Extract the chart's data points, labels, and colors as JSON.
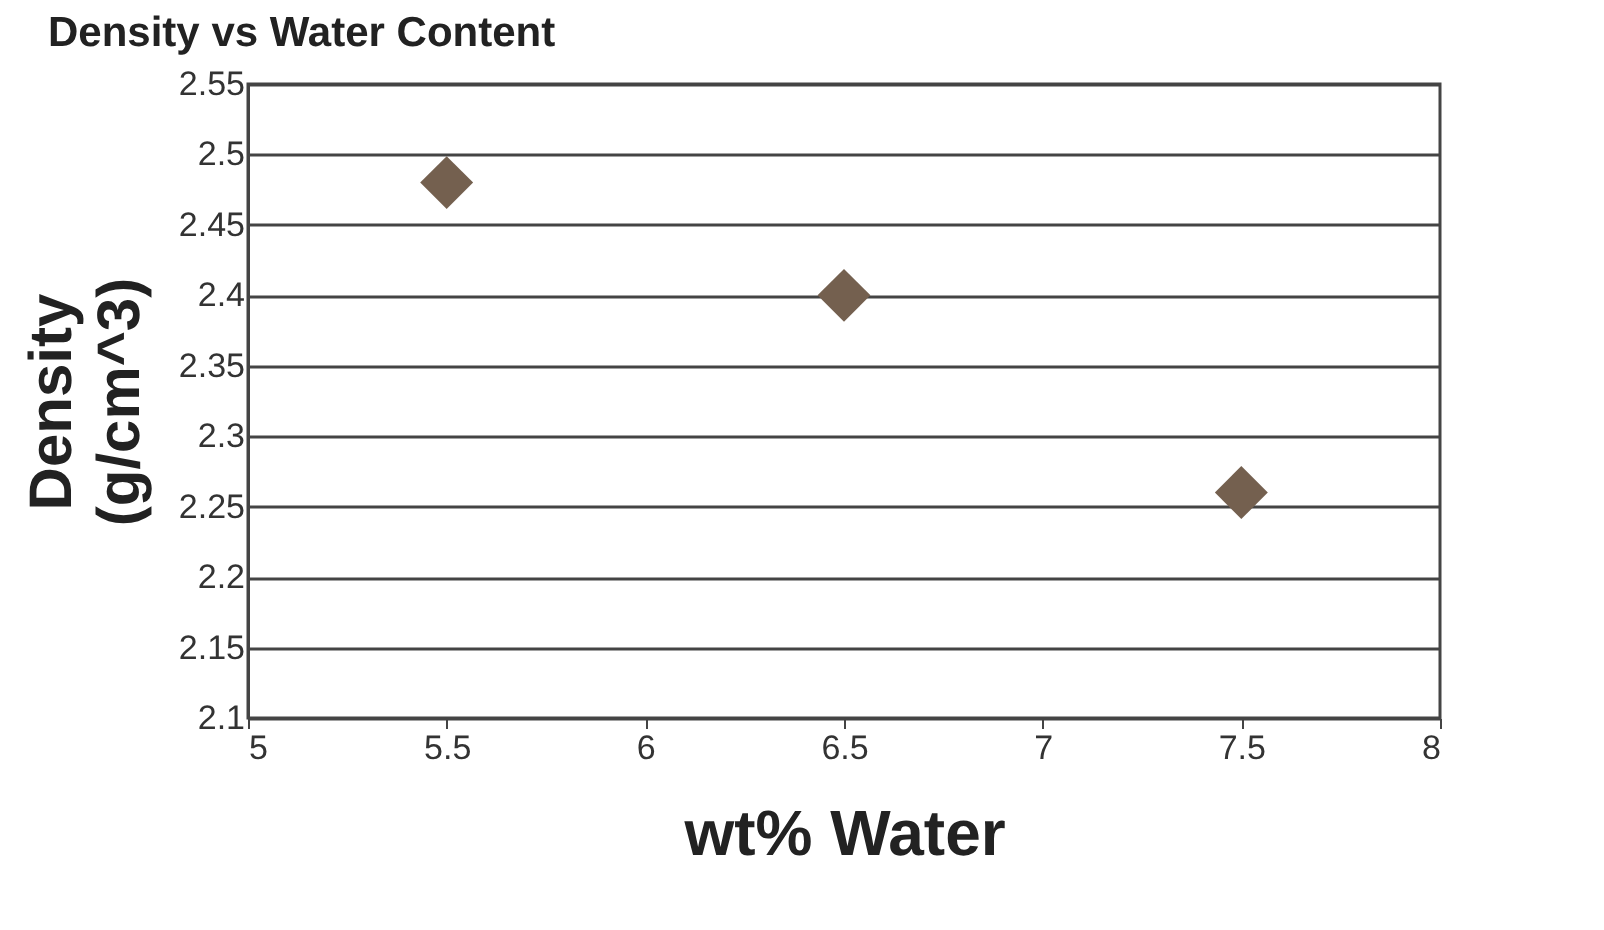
{
  "chart_data": {
    "type": "scatter",
    "title": "Density vs Water Content",
    "xlabel": "wt% Water",
    "ylabel": "Density (g/cm^3)",
    "x": [
      5.5,
      6.5,
      7.5
    ],
    "series": [
      {
        "color": "#74604f",
        "values": [
          2.48,
          2.4,
          2.26
        ]
      }
    ],
    "marker": "diamond",
    "grid": "y",
    "xlim": [
      5,
      8
    ],
    "xticks": [
      5,
      5.5,
      6,
      6.5,
      7,
      7.5,
      8
    ],
    "ylim": [
      2.1,
      2.55
    ],
    "yticks": [
      2.1,
      2.15,
      2.2,
      2.25,
      2.3,
      2.35,
      2.4,
      2.45,
      2.5,
      2.55
    ]
  }
}
